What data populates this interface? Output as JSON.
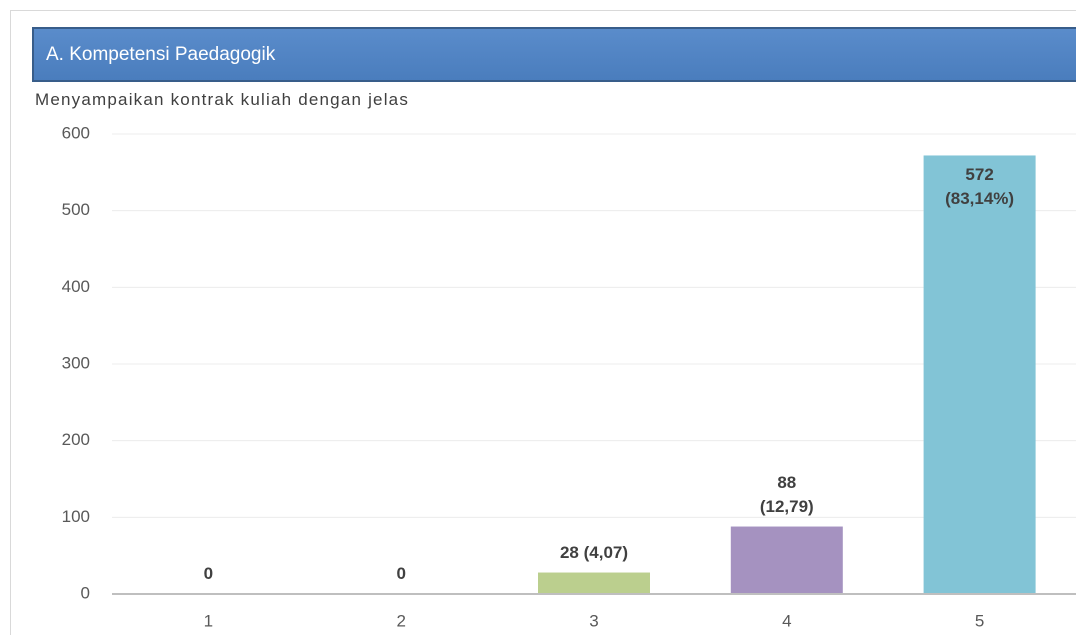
{
  "header": {
    "title": "A. Kompetensi Paedagogik"
  },
  "chart_data": {
    "type": "bar",
    "title": "Menyampaikan kontrak kuliah dengan jelas",
    "categories": [
      "1",
      "2",
      "3",
      "4",
      "5"
    ],
    "values": [
      0,
      0,
      28,
      88,
      572
    ],
    "value_labels": [
      "0",
      "0",
      "28 (4,07)",
      "88\n(12,79)",
      "572\n(83,14%)"
    ],
    "colors": [
      "#4f81bd",
      "#c0504d",
      "#bbcf8e",
      "#a592c0",
      "#82c4d6"
    ],
    "ylim": [
      0,
      600
    ],
    "yticks": [
      0,
      100,
      200,
      300,
      400,
      500,
      600
    ],
    "grid": true
  }
}
